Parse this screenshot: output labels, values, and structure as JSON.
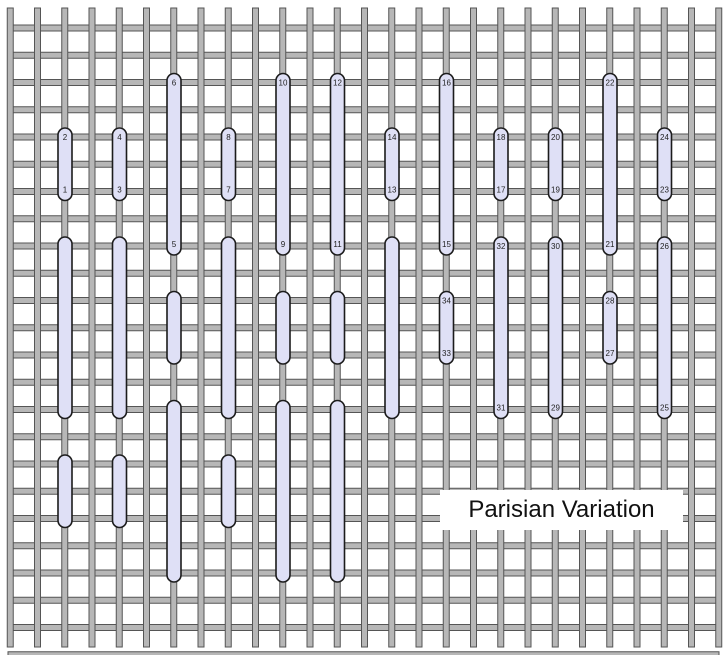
{
  "title": "Parisian Variation",
  "colors": {
    "background": "#ffffff",
    "thread_fill": "#b7b7b7",
    "thread_stroke": "#555555",
    "stitch_fill": "#dfe0f6",
    "stitch_stroke": "#1c1c1c",
    "label": "#222222"
  },
  "canvas_threads": {
    "vertical_columns": [
      {
        "col": 0
      },
      {
        "col": 1
      },
      {
        "col": 2
      },
      {
        "col": 3
      },
      {
        "col": 4
      },
      {
        "col": 5
      },
      {
        "col": 6
      },
      {
        "col": 7
      },
      {
        "col": 8
      },
      {
        "col": 9
      },
      {
        "col": 10
      },
      {
        "col": 11
      },
      {
        "col": 12
      },
      {
        "col": 13
      }
    ],
    "horizontal_rows": [
      {
        "row": 0
      },
      {
        "row": 1
      },
      {
        "row": 2
      },
      {
        "row": 3
      },
      {
        "row": 4
      },
      {
        "row": 5
      },
      {
        "row": 6
      },
      {
        "row": 7
      },
      {
        "row": 8
      },
      {
        "row": 9
      },
      {
        "row": 10
      },
      {
        "row": 11
      }
    ]
  },
  "stitches": [
    {
      "col": 0,
      "from_row": 3,
      "to_row": 2,
      "start_label": "1",
      "end_label": "2"
    },
    {
      "col": 1,
      "from_row": 3,
      "to_row": 2,
      "start_label": "3",
      "end_label": "4"
    },
    {
      "col": 2,
      "from_row": 4,
      "to_row": 1,
      "start_label": "5",
      "end_label": "6"
    },
    {
      "col": 3,
      "from_row": 3,
      "to_row": 2,
      "start_label": "7",
      "end_label": "8"
    },
    {
      "col": 4,
      "from_row": 4,
      "to_row": 1,
      "start_label": "9",
      "end_label": "10"
    },
    {
      "col": 5,
      "from_row": 4,
      "to_row": 1,
      "start_label": "11",
      "end_label": "12"
    },
    {
      "col": 6,
      "from_row": 3,
      "to_row": 2,
      "start_label": "13",
      "end_label": "14"
    },
    {
      "col": 7,
      "from_row": 4,
      "to_row": 1,
      "start_label": "15",
      "end_label": "16"
    },
    {
      "col": 8,
      "from_row": 3,
      "to_row": 2,
      "start_label": "17",
      "end_label": "18"
    },
    {
      "col": 9,
      "from_row": 3,
      "to_row": 2,
      "start_label": "19",
      "end_label": "20"
    },
    {
      "col": 10,
      "from_row": 4,
      "to_row": 1,
      "start_label": "21",
      "end_label": "22"
    },
    {
      "col": 11,
      "from_row": 3,
      "to_row": 2,
      "start_label": "23",
      "end_label": "24"
    },
    {
      "col": 11,
      "from_row": 7,
      "to_row": 4,
      "start_label": "25",
      "end_label": "26"
    },
    {
      "col": 10,
      "from_row": 6,
      "to_row": 5,
      "start_label": "27",
      "end_label": "28"
    },
    {
      "col": 9,
      "from_row": 7,
      "to_row": 4,
      "start_label": "29",
      "end_label": "30"
    },
    {
      "col": 8,
      "from_row": 7,
      "to_row": 4,
      "start_label": "31",
      "end_label": "32"
    },
    {
      "col": 7,
      "from_row": 6,
      "to_row": 5,
      "start_label": "33",
      "end_label": "34"
    },
    {
      "col": 0,
      "from_row": 7,
      "to_row": 4
    },
    {
      "col": 1,
      "from_row": 7,
      "to_row": 4
    },
    {
      "col": 2,
      "from_row": 6,
      "to_row": 5
    },
    {
      "col": 3,
      "from_row": 7,
      "to_row": 4
    },
    {
      "col": 4,
      "from_row": 6,
      "to_row": 5
    },
    {
      "col": 5,
      "from_row": 6,
      "to_row": 5
    },
    {
      "col": 6,
      "from_row": 7,
      "to_row": 4
    },
    {
      "col": 0,
      "from_row": 9,
      "to_row": 8
    },
    {
      "col": 1,
      "from_row": 9,
      "to_row": 8
    },
    {
      "col": 2,
      "from_row": 10,
      "to_row": 7
    },
    {
      "col": 3,
      "from_row": 9,
      "to_row": 8
    },
    {
      "col": 4,
      "from_row": 10,
      "to_row": 7
    },
    {
      "col": 5,
      "from_row": 10,
      "to_row": 7
    }
  ]
}
